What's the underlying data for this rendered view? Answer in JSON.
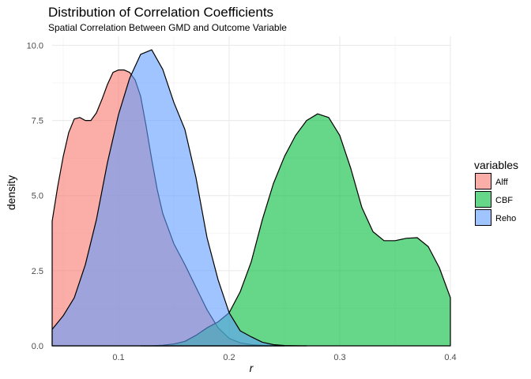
{
  "chart_data": {
    "type": "area",
    "title": "Distribution of Correlation Coefficients",
    "subtitle": "Spatial Correlation Between GMD and Outcome Variable",
    "xlabel": "r",
    "ylabel": "density",
    "xlim": [
      0.04,
      0.4
    ],
    "ylim": [
      0,
      10.3
    ],
    "x_ticks": [
      0.1,
      0.2,
      0.3,
      0.4
    ],
    "x_tick_labels": [
      "0.1",
      "0.2",
      "0.3",
      "0.4"
    ],
    "y_ticks": [
      0,
      2.5,
      5,
      7.5,
      10
    ],
    "y_tick_labels": [
      "0.0",
      "2.5",
      "5.0",
      "7.5",
      "10.0"
    ],
    "grid": true,
    "legend": {
      "title": "variables",
      "position": "right"
    },
    "series": [
      {
        "name": "Alff",
        "color": "#F8766D",
        "opacity": 0.6,
        "x": [
          0.04,
          0.045,
          0.05,
          0.055,
          0.06,
          0.065,
          0.07,
          0.075,
          0.08,
          0.085,
          0.09,
          0.095,
          0.1,
          0.105,
          0.11,
          0.115,
          0.12,
          0.125,
          0.13,
          0.135,
          0.14,
          0.15,
          0.16,
          0.17,
          0.18,
          0.19,
          0.2,
          0.21,
          0.22,
          0.23,
          0.24,
          0.25
        ],
        "y": [
          4.15,
          5.3,
          6.3,
          7.1,
          7.55,
          7.6,
          7.5,
          7.5,
          7.75,
          8.2,
          8.7,
          9.1,
          9.18,
          9.18,
          9.1,
          8.85,
          8.3,
          7.3,
          6.2,
          5.2,
          4.4,
          3.4,
          2.7,
          1.95,
          1.2,
          0.6,
          0.25,
          0.1,
          0.04,
          0.015,
          0.005,
          0.0
        ]
      },
      {
        "name": "CBF",
        "color": "#00BA38",
        "opacity": 0.6,
        "x": [
          0.12,
          0.13,
          0.14,
          0.15,
          0.16,
          0.17,
          0.18,
          0.19,
          0.2,
          0.21,
          0.22,
          0.23,
          0.24,
          0.25,
          0.26,
          0.27,
          0.28,
          0.29,
          0.3,
          0.31,
          0.32,
          0.33,
          0.34,
          0.35,
          0.36,
          0.37,
          0.38,
          0.39,
          0.4
        ],
        "y": [
          0.0,
          0.0,
          0.02,
          0.06,
          0.15,
          0.35,
          0.6,
          0.8,
          1.1,
          1.8,
          2.8,
          4.2,
          5.4,
          6.3,
          7.0,
          7.5,
          7.72,
          7.6,
          7.0,
          5.9,
          4.6,
          3.8,
          3.5,
          3.5,
          3.58,
          3.6,
          3.3,
          2.6,
          1.6
        ]
      },
      {
        "name": "Reho",
        "color": "#619CFF",
        "opacity": 0.6,
        "x": [
          0.04,
          0.05,
          0.06,
          0.07,
          0.08,
          0.09,
          0.1,
          0.11,
          0.12,
          0.13,
          0.14,
          0.15,
          0.16,
          0.17,
          0.18,
          0.19,
          0.2,
          0.21,
          0.22,
          0.23,
          0.24,
          0.25,
          0.26,
          0.27
        ],
        "y": [
          0.55,
          1.0,
          1.6,
          2.7,
          4.2,
          6.1,
          7.7,
          8.9,
          9.7,
          9.85,
          9.2,
          8.1,
          7.2,
          5.6,
          3.6,
          2.2,
          1.1,
          0.5,
          0.3,
          0.12,
          0.04,
          0.01,
          0.002,
          0.0
        ]
      }
    ]
  }
}
